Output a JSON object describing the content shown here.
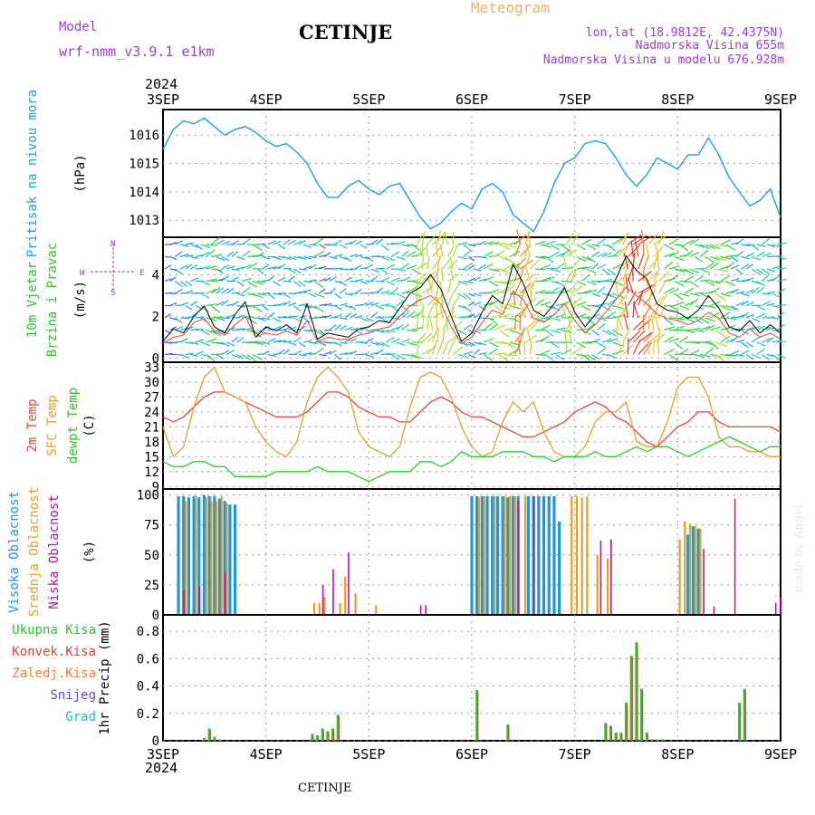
{
  "header": {
    "model_label": "Model",
    "model_name": "wrf-nmm_v3.9.1 e1km",
    "station": "CETINJE",
    "product": "Meteogram",
    "lonlat": "lon,lat (18.9812E, 42.4375N)",
    "elevation": "Nadmorska Visina 655m",
    "model_elevation": "Nadmorska Visina u modelu 676.928m"
  },
  "footer": {
    "station": "CETINJE",
    "credit": "made by Angel"
  },
  "time_axis": {
    "year": "2024",
    "ticks": [
      "3SEP",
      "4SEP",
      "5SEP",
      "6SEP",
      "7SEP",
      "8SEP",
      "9SEP"
    ]
  },
  "colors": {
    "pressure": "#1ea0e6",
    "temp": "#e8463c",
    "sfc": "#e0a030",
    "dewpt": "#2ecc2e",
    "high_cloud": "#1e96e0",
    "mid_cloud": "#e6a020",
    "low_cloud": "#c010a0",
    "precip_total": "#30c030",
    "precip_conv": "#e04040",
    "precip_frz": "#ff7f27",
    "snow": "#5050e0",
    "grad": "#20c0c0",
    "grid": "#999999",
    "labels_purple": "#9a3fc6"
  },
  "chart_data": [
    {
      "type": "line",
      "name": "pressure",
      "ylabel_lines": [
        "Pritisak na nivou mora",
        "(hPa)"
      ],
      "ylim": [
        1012.4,
        1016.9
      ],
      "yticks": [
        1013,
        1014,
        1015,
        1016
      ],
      "x": [
        0,
        0.1,
        0.2,
        0.3,
        0.4,
        0.5,
        0.6,
        0.7,
        0.8,
        0.9,
        1.0,
        1.1,
        1.2,
        1.3,
        1.4,
        1.5,
        1.6,
        1.7,
        1.8,
        1.9,
        2.0,
        2.1,
        2.2,
        2.3,
        2.4,
        2.5,
        2.6,
        2.7,
        2.8,
        2.9,
        3.0,
        3.1,
        3.2,
        3.3,
        3.4,
        3.5,
        3.6,
        3.7,
        3.8,
        3.9,
        4.0,
        4.1,
        4.2,
        4.3,
        4.4,
        4.5,
        4.6,
        4.7,
        4.8,
        4.9,
        5.0,
        5.1,
        5.2,
        5.3,
        5.4,
        5.5,
        5.6,
        5.7,
        5.8,
        5.9,
        6.0
      ],
      "series": [
        {
          "values": [
            1015.5,
            1016.2,
            1016.5,
            1016.4,
            1016.6,
            1016.3,
            1016.0,
            1016.2,
            1016.3,
            1016.1,
            1015.8,
            1015.6,
            1015.7,
            1015.4,
            1015.0,
            1014.3,
            1013.8,
            1013.8,
            1014.2,
            1014.4,
            1014.1,
            1013.9,
            1014.2,
            1014.3,
            1013.7,
            1013.1,
            1012.7,
            1012.9,
            1013.3,
            1013.6,
            1013.4,
            1014.1,
            1014.3,
            1014.0,
            1013.2,
            1012.9,
            1012.6,
            1013.3,
            1014.3,
            1015.0,
            1015.2,
            1015.7,
            1015.8,
            1015.7,
            1015.2,
            1014.6,
            1014.2,
            1014.6,
            1015.2,
            1015.0,
            1014.8,
            1015.3,
            1015.3,
            1015.9,
            1015.3,
            1014.5,
            1014.0,
            1013.5,
            1013.7,
            1014.1,
            1013.1
          ]
        }
      ]
    },
    {
      "type": "line",
      "name": "wind",
      "ylabel_lines": [
        "10m Vjetar",
        "Brzina i Pravac",
        "(m/s)"
      ],
      "compass": {
        "w": "W",
        "e": "E",
        "n": "N",
        "s": "S"
      },
      "ylim": [
        -0.2,
        5.8
      ],
      "yticks": [
        0,
        2,
        4
      ],
      "x": [
        0,
        0.1,
        0.2,
        0.3,
        0.4,
        0.5,
        0.6,
        0.7,
        0.8,
        0.9,
        1.0,
        1.1,
        1.2,
        1.3,
        1.4,
        1.5,
        1.6,
        1.7,
        1.8,
        1.9,
        2.0,
        2.1,
        2.2,
        2.3,
        2.4,
        2.5,
        2.6,
        2.7,
        2.8,
        2.9,
        3.0,
        3.1,
        3.2,
        3.3,
        3.4,
        3.5,
        3.6,
        3.7,
        3.8,
        3.9,
        4.0,
        4.1,
        4.2,
        4.3,
        4.4,
        4.5,
        4.6,
        4.7,
        4.8,
        4.9,
        5.0,
        5.1,
        5.2,
        5.3,
        5.4,
        5.5,
        5.6,
        5.7,
        5.8,
        5.9,
        6.0
      ],
      "series": [
        {
          "values": [
            0.8,
            1.4,
            1.2,
            2.0,
            2.5,
            1.5,
            1.2,
            2.1,
            2.7,
            1.0,
            1.5,
            1.3,
            1.6,
            1.2,
            2.6,
            0.9,
            1.2,
            1.1,
            1.0,
            1.4,
            1.5,
            1.8,
            1.7,
            2.4,
            3.1,
            3.4,
            4.0,
            3.3,
            2.0,
            0.8,
            1.2,
            2.2,
            3.0,
            2.6,
            4.5,
            3.6,
            2.3,
            2.0,
            2.6,
            3.4,
            2.2,
            1.5,
            2.1,
            2.8,
            3.8,
            4.9,
            4.2,
            3.8,
            2.6,
            2.3,
            2.2,
            1.9,
            2.3,
            3.0,
            2.4,
            1.5,
            1.3,
            1.8,
            1.2,
            1.6,
            1.2
          ]
        },
        {
          "values": [
            0.7,
            1.0,
            1.1,
            1.7,
            1.9,
            1.3,
            1.1,
            1.6,
            2.0,
            1.0,
            1.2,
            1.1,
            1.3,
            1.1,
            1.8,
            0.8,
            1.0,
            0.9,
            0.9,
            1.1,
            1.2,
            1.4,
            1.5,
            2.0,
            2.5,
            2.8,
            3.0,
            2.6,
            1.5,
            0.7,
            1.0,
            1.7,
            2.3,
            2.1,
            3.2,
            2.8,
            1.9,
            1.7,
            2.1,
            2.6,
            1.8,
            1.2,
            1.6,
            2.2,
            2.8,
            3.4,
            3.0,
            2.6,
            2.1,
            1.9,
            1.8,
            1.6,
            1.8,
            2.2,
            1.9,
            1.2,
            1.0,
            1.4,
            1.0,
            1.2,
            0.9
          ]
        }
      ]
    },
    {
      "type": "line",
      "name": "temperature",
      "ylabel_lines": [
        "2m Temp",
        "SFC Temp",
        "dewpt Temp",
        "(C)"
      ],
      "ylim": [
        8.5,
        34
      ],
      "yticks": [
        9,
        12,
        15,
        18,
        21,
        24,
        27,
        30,
        33
      ],
      "x": [
        0,
        0.1,
        0.2,
        0.3,
        0.4,
        0.5,
        0.6,
        0.7,
        0.8,
        0.9,
        1.0,
        1.1,
        1.2,
        1.3,
        1.4,
        1.5,
        1.6,
        1.7,
        1.8,
        1.9,
        2.0,
        2.1,
        2.2,
        2.3,
        2.4,
        2.5,
        2.6,
        2.7,
        2.8,
        2.9,
        3.0,
        3.1,
        3.2,
        3.3,
        3.4,
        3.5,
        3.6,
        3.7,
        3.8,
        3.9,
        4.0,
        4.1,
        4.2,
        4.3,
        4.4,
        4.5,
        4.6,
        4.7,
        4.8,
        4.9,
        5.0,
        5.1,
        5.2,
        5.3,
        5.4,
        5.5,
        5.6,
        5.7,
        5.8,
        5.9,
        6.0
      ],
      "series": [
        {
          "name": "2m Temp",
          "values": [
            23,
            22,
            23,
            25,
            27,
            28,
            28,
            27,
            26,
            25,
            24,
            23,
            23,
            23,
            24,
            26,
            28,
            28,
            27,
            25,
            24,
            23,
            23,
            22,
            22,
            24,
            26,
            27,
            26,
            24,
            23,
            23,
            22,
            21,
            20,
            19,
            19,
            20,
            21,
            22,
            24,
            25,
            26,
            25,
            23,
            22,
            20,
            18,
            17,
            19,
            21,
            22,
            24,
            24,
            22,
            21,
            21,
            21,
            21,
            21,
            20
          ]
        },
        {
          "name": "SFC Temp",
          "values": [
            21,
            15,
            17,
            25,
            31,
            33,
            28,
            27,
            26,
            21,
            18,
            16,
            15,
            18,
            26,
            31,
            33,
            31,
            28,
            20,
            17,
            16,
            15,
            17,
            25,
            31,
            32,
            31,
            27,
            21,
            17,
            15,
            16,
            22,
            26,
            24,
            26,
            20,
            16,
            15,
            15,
            17,
            22,
            24,
            24,
            26,
            18,
            17,
            17,
            22,
            29,
            31,
            31,
            27,
            19,
            17,
            17,
            16,
            16,
            15,
            15
          ]
        },
        {
          "name": "dewpt Temp",
          "values": [
            14,
            13,
            13,
            14,
            14,
            13,
            13,
            11,
            11,
            11,
            11,
            12,
            12,
            12,
            12,
            13,
            12,
            12,
            12,
            11,
            10,
            11,
            12,
            12,
            12,
            14,
            14,
            13,
            14,
            16,
            15,
            15,
            15,
            16,
            16,
            16,
            15,
            15,
            14,
            15,
            15,
            15,
            16,
            15,
            15,
            16,
            17,
            16,
            17,
            17,
            16,
            15,
            16,
            17,
            18,
            19,
            18,
            17,
            16,
            17,
            17
          ]
        }
      ]
    },
    {
      "type": "bar",
      "name": "cloud_cover",
      "ylabel_lines": [
        "Visoka Oblacnost",
        "Srednja Oblacnost",
        "Niska Oblacnost",
        "(%)"
      ],
      "ylim": [
        0,
        105
      ],
      "yticks": [
        0,
        25,
        50,
        75,
        100
      ],
      "high_cloud": {
        "x": [
          0.15,
          0.2,
          0.25,
          0.3,
          0.35,
          0.4,
          0.45,
          0.5,
          0.55,
          0.6,
          0.65,
          0.7,
          3.0,
          3.05,
          3.1,
          3.15,
          3.2,
          3.25,
          3.3,
          3.35,
          3.4,
          3.45,
          3.55,
          3.6,
          3.65,
          3.7,
          3.75,
          3.8,
          3.85,
          5.1,
          5.15,
          5.2
        ],
        "values": [
          99,
          99,
          98,
          99,
          98,
          100,
          99,
          99,
          97,
          95,
          92,
          92,
          99,
          99,
          99,
          99,
          99,
          99,
          99,
          98,
          99,
          99,
          99,
          99,
          99,
          99,
          99,
          99,
          78,
          67,
          74,
          72
        ]
      },
      "mid_cloud": {
        "x": [
          0.2,
          0.3,
          0.4,
          0.45,
          0.5,
          0.55,
          0.6,
          1.45,
          1.5,
          1.55,
          1.7,
          1.75,
          1.85,
          2.05,
          3.05,
          3.1,
          3.2,
          3.3,
          3.35,
          3.4,
          3.5,
          3.95,
          4.0,
          4.05,
          4.1,
          4.2,
          4.3,
          5.0,
          5.05,
          5.1,
          5.15,
          5.2
        ],
        "values": [
          95,
          99,
          98,
          95,
          95,
          99,
          93,
          10,
          10,
          15,
          10,
          32,
          18,
          8,
          98,
          99,
          99,
          99,
          99,
          99,
          99,
          99,
          99,
          98,
          99,
          50,
          47,
          63,
          78,
          76,
          74,
          72
        ]
      },
      "low_cloud": {
        "x": [
          0.2,
          0.35,
          0.6,
          1.55,
          1.65,
          1.8,
          2.5,
          2.55,
          3.45,
          3.6,
          4.25,
          4.35,
          5.25,
          5.35,
          5.95,
          6.0
        ],
        "values": [
          20,
          24,
          35,
          25,
          38,
          52,
          8,
          8,
          95,
          99,
          62,
          63,
          55,
          7,
          10,
          15
        ]
      },
      "extra": [
        {
          "x": 5.55,
          "value": 97
        }
      ]
    },
    {
      "type": "bar",
      "name": "precipitation",
      "ylabel_lines": [
        "1hr Precip (mm)"
      ],
      "legend": [
        "Ukupna Kisa",
        "Konvek.Kisa",
        "Zaledj.Kisa",
        "Snijeg",
        "Grad"
      ],
      "ylim": [
        0,
        0.92
      ],
      "yticks": [
        0,
        0.2,
        0.4,
        0.6,
        0.8
      ],
      "x": [
        0.4,
        0.45,
        0.5,
        0.55,
        1.45,
        1.5,
        1.55,
        1.6,
        1.65,
        1.7,
        3.05,
        3.35,
        4.3,
        4.35,
        4.4,
        4.45,
        4.5,
        4.55,
        4.6,
        4.65,
        4.7,
        4.75,
        4.8,
        4.85,
        5.6,
        5.65
      ],
      "values": [
        0.02,
        0.09,
        0.03,
        0.01,
        0.05,
        0.04,
        0.09,
        0.07,
        0.09,
        0.19,
        0.37,
        0.12,
        0.13,
        0.11,
        0.06,
        0.06,
        0.28,
        0.62,
        0.72,
        0.38,
        0.06,
        0.01,
        0.01,
        0.01,
        0.28,
        0.38
      ]
    }
  ]
}
